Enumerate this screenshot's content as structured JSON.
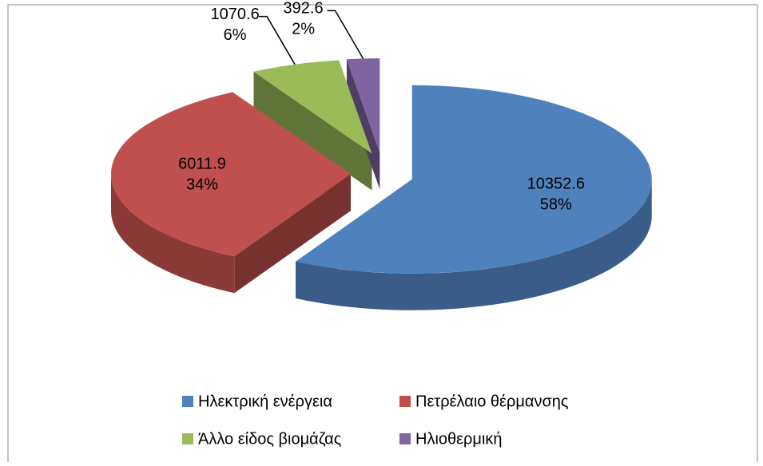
{
  "chart_data": {
    "type": "pie",
    "categories": [
      "Ηλεκτρική ενέργεια",
      "Πετρέλαιο θέρμανσης",
      "Άλλο είδος βιομάζας",
      "Ηλιοθερμική"
    ],
    "values": [
      10352.6,
      6011.9,
      1070.6,
      392.6
    ],
    "percent_labels": [
      "58%",
      "34%",
      "6%",
      "2%"
    ],
    "colors": [
      "#4f81bd",
      "#c0504d",
      "#9bbb59",
      "#8064a2"
    ],
    "legend": "bottom"
  }
}
